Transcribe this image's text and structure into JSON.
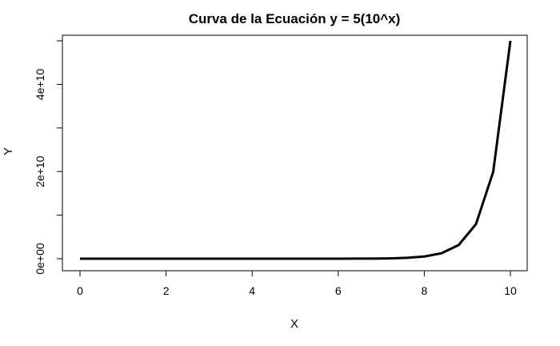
{
  "chart_data": {
    "type": "line",
    "title": "Curva de la Ecuación y = 5(10^x)",
    "xlabel": "X",
    "ylabel": "Y",
    "xlim": [
      0,
      10
    ],
    "ylim": [
      0,
      50000000000
    ],
    "x_ticks": [
      {
        "value": 0,
        "label": "0"
      },
      {
        "value": 2,
        "label": "2"
      },
      {
        "value": 4,
        "label": "4"
      },
      {
        "value": 6,
        "label": "6"
      },
      {
        "value": 8,
        "label": "8"
      },
      {
        "value": 10,
        "label": "10"
      }
    ],
    "y_ticks": [
      {
        "value": 0,
        "label": "0e+00"
      },
      {
        "value": 10000000000,
        "label": ""
      },
      {
        "value": 20000000000,
        "label": "2e+10"
      },
      {
        "value": 30000000000,
        "label": ""
      },
      {
        "value": 40000000000,
        "label": "4e+10"
      },
      {
        "value": 50000000000,
        "label": ""
      }
    ],
    "grid": false,
    "series": [
      {
        "color": "#000000",
        "x": [
          0,
          0.4,
          0.8,
          1.2,
          1.6,
          2.0,
          2.4,
          2.8,
          3.2,
          3.6,
          4.0,
          4.4,
          4.8,
          5.2,
          5.6,
          6.0,
          6.4,
          6.8,
          7.2,
          7.6,
          8.0,
          8.4,
          8.8,
          9.2,
          9.6,
          10.0
        ],
        "y": [
          5,
          12.56,
          31.55,
          79.24,
          199.1,
          500,
          1256,
          3155,
          7924,
          19905,
          50000,
          125594,
          315479,
          792447,
          1990536,
          5000000,
          12559432,
          31547867,
          79244659,
          199053585,
          500000000,
          1255943215,
          3154786722,
          7924465962,
          19905358528,
          50000000000
        ]
      }
    ]
  }
}
